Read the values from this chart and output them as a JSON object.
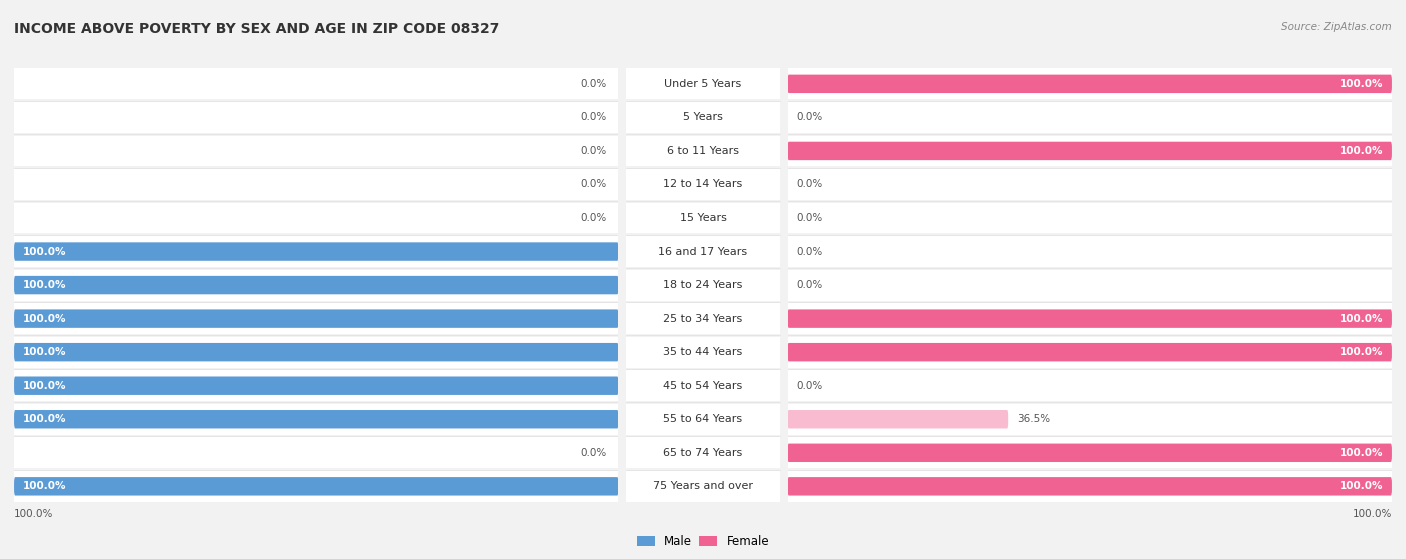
{
  "title": "INCOME ABOVE POVERTY BY SEX AND AGE IN ZIP CODE 08327",
  "source": "Source: ZipAtlas.com",
  "categories": [
    "Under 5 Years",
    "5 Years",
    "6 to 11 Years",
    "12 to 14 Years",
    "15 Years",
    "16 and 17 Years",
    "18 to 24 Years",
    "25 to 34 Years",
    "35 to 44 Years",
    "45 to 54 Years",
    "55 to 64 Years",
    "65 to 74 Years",
    "75 Years and over"
  ],
  "male_values": [
    0.0,
    0.0,
    0.0,
    0.0,
    0.0,
    100.0,
    100.0,
    100.0,
    100.0,
    100.0,
    100.0,
    0.0,
    100.0
  ],
  "female_values": [
    100.0,
    0.0,
    100.0,
    0.0,
    0.0,
    0.0,
    0.0,
    100.0,
    100.0,
    0.0,
    36.5,
    100.0,
    100.0
  ],
  "male_color": "#5B9BD5",
  "male_light_color": "#BDD7EE",
  "female_color": "#F06292",
  "female_light_color": "#F8BBD0",
  "bg_color": "#F2F2F2",
  "title_fontsize": 10,
  "cat_fontsize": 8,
  "val_fontsize": 7.5,
  "source_fontsize": 7.5,
  "legend_fontsize": 8.5,
  "max_val": 100.0,
  "figsize": [
    14.06,
    5.59
  ]
}
